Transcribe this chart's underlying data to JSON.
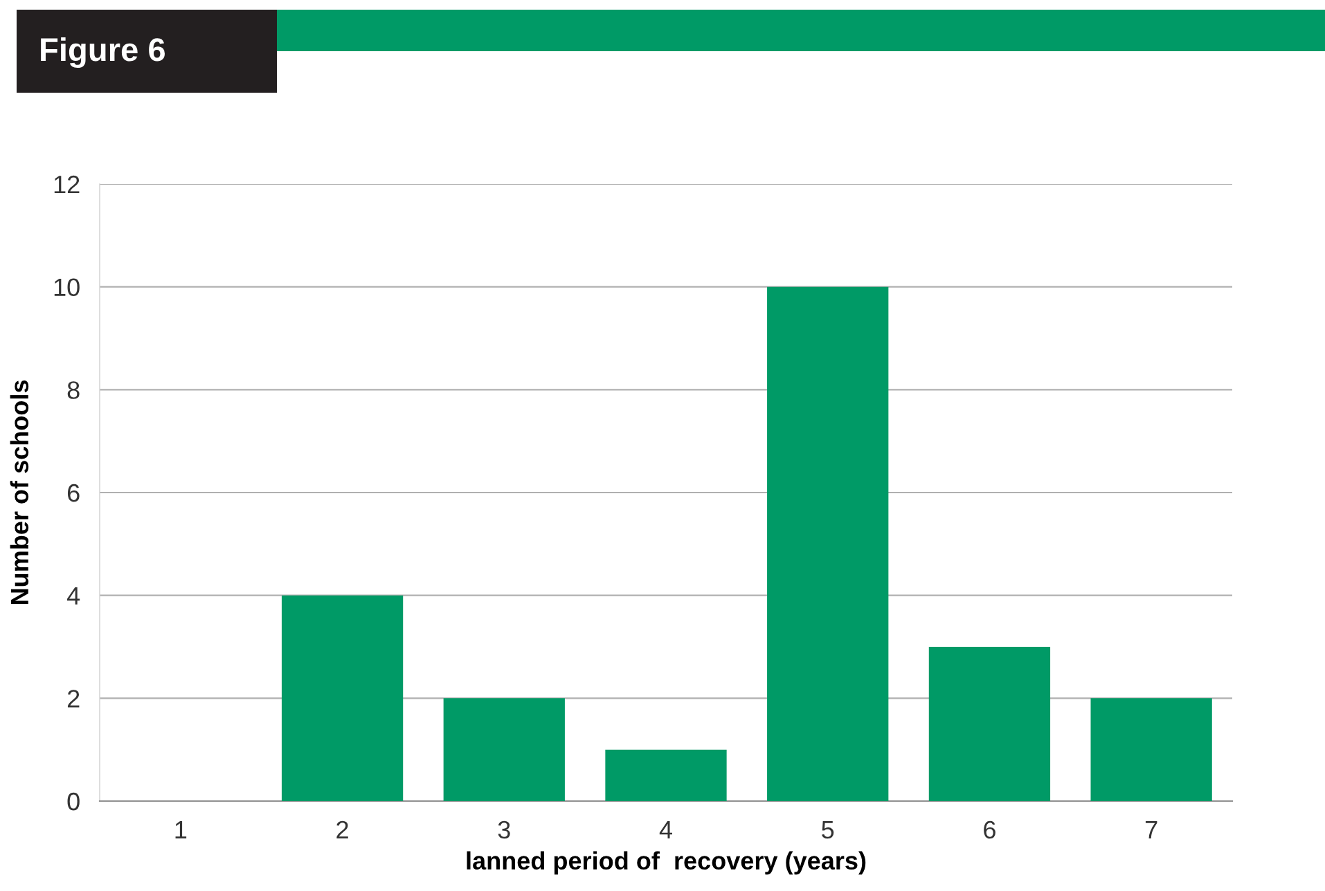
{
  "chart_data": {
    "type": "bar",
    "title": "Figure 6",
    "xlabel": "lanned period of  recovery (years)",
    "ylabel": "Number of schools",
    "categories": [
      "1",
      "2",
      "3",
      "4",
      "5",
      "6",
      "7"
    ],
    "values": [
      0,
      4,
      2,
      1,
      10,
      3,
      2
    ],
    "color": "#009a66",
    "ylim": [
      0,
      12
    ],
    "yticks": [
      0,
      2,
      4,
      6,
      8,
      10,
      12
    ],
    "grid": "y"
  }
}
